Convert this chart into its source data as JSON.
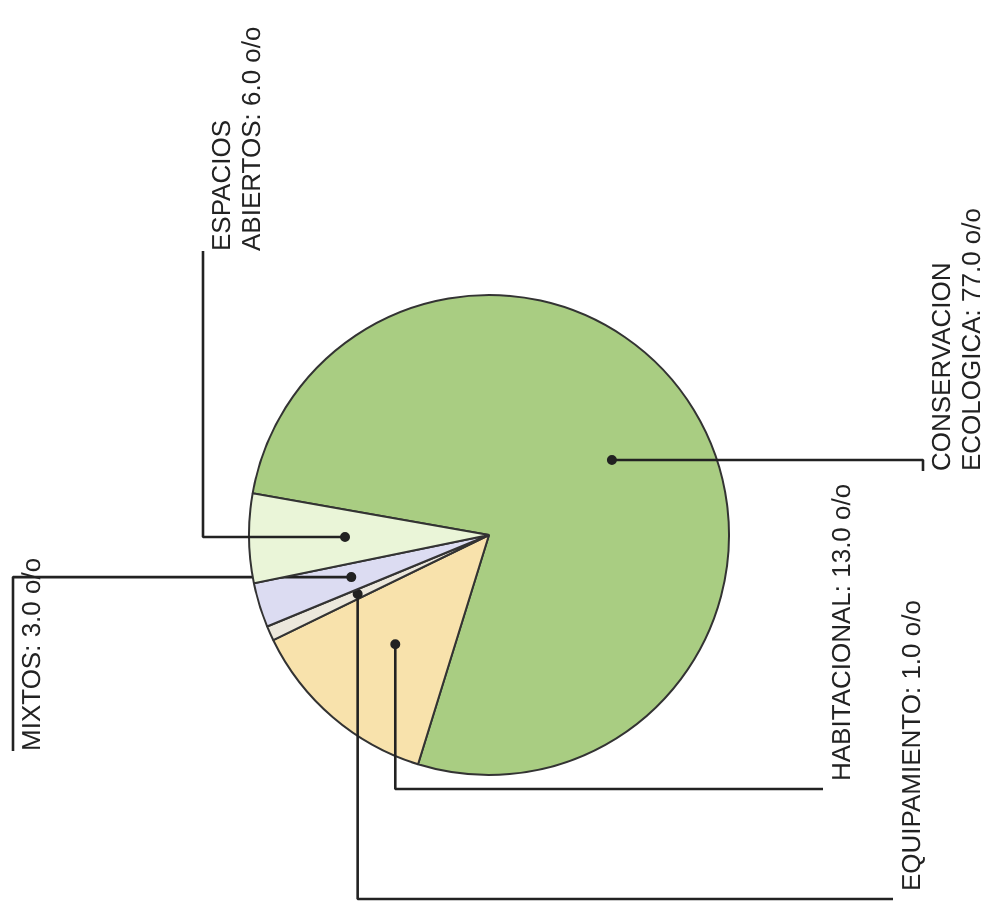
{
  "chart_data": {
    "type": "pie",
    "categories": [
      "CONSERVACION ECOLOGICA",
      "HABITACIONAL",
      "EQUIPAMIENTO",
      "MIXTOS",
      "ESPACIOS ABIERTOS"
    ],
    "values": [
      77.0,
      13.0,
      1.0,
      3.0,
      6.0
    ],
    "value_labels": [
      "77.0 o/o",
      "13.0 o/o",
      "1.0 o/o",
      "3.0 o/o",
      "6.0 o/o"
    ],
    "colors": [
      "#a9cd82",
      "#f8e2ac",
      "#ece8dc",
      "#dcdcf2",
      "#eaf5d8"
    ]
  }
}
